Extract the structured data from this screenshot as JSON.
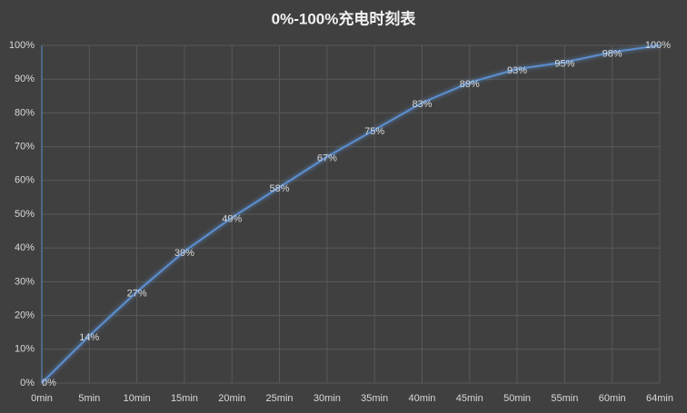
{
  "chart_data": {
    "type": "line",
    "title": "0%-100%充电时刻表",
    "categories": [
      "0min",
      "5min",
      "10min",
      "15min",
      "20min",
      "25min",
      "30min",
      "35min",
      "40min",
      "45min",
      "50min",
      "55min",
      "60min",
      "64min"
    ],
    "values": [
      0,
      14,
      27,
      39,
      49,
      58,
      67,
      75,
      83,
      89,
      93,
      95,
      98,
      100
    ],
    "value_labels": [
      "0%",
      "14%",
      "27%",
      "39%",
      "49%",
      "58%",
      "67%",
      "75%",
      "83%",
      "89%",
      "93%",
      "95%",
      "98%",
      "100%"
    ],
    "color": "#5b8fd0",
    "ylim": [
      0,
      100
    ],
    "yticks": [
      {
        "value": 0,
        "label": "0%"
      },
      {
        "value": 10,
        "label": "10%"
      },
      {
        "value": 20,
        "label": "20%"
      },
      {
        "value": 30,
        "label": "30%"
      },
      {
        "value": 40,
        "label": "40%"
      },
      {
        "value": 50,
        "label": "50%"
      },
      {
        "value": 60,
        "label": "60%"
      },
      {
        "value": 70,
        "label": "70%"
      },
      {
        "value": 80,
        "label": "80%"
      },
      {
        "value": 90,
        "label": "90%"
      },
      {
        "value": 100,
        "label": "100%"
      }
    ],
    "grid": true
  }
}
